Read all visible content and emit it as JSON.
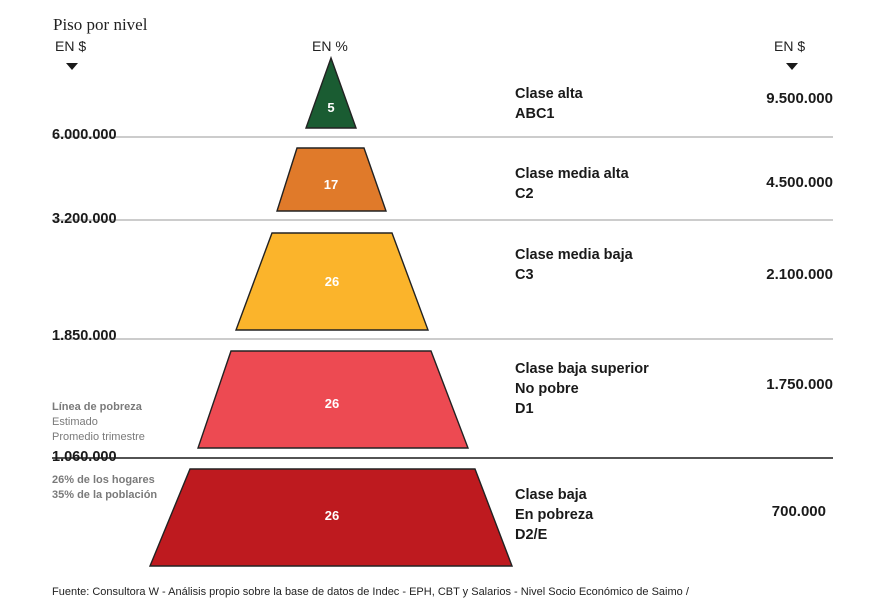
{
  "header": {
    "title": "Piso por nivel",
    "left_unit": "EN $",
    "center_unit": "EN %",
    "right_unit": "EN $"
  },
  "thresholds": [
    "6.000.000",
    "3.200.000",
    "1.850.000",
    "1.060.000"
  ],
  "poverty_note": {
    "line1": "Línea de pobreza",
    "line2": "Estimado",
    "line3": "Promedio trimestre"
  },
  "poor_note": {
    "line1": "26% de los hogares",
    "line2": "35% de la población"
  },
  "classes": [
    {
      "lines": [
        "Clase alta",
        "ABC1"
      ]
    },
    {
      "lines": [
        "Clase media alta",
        "C2"
      ]
    },
    {
      "lines": [
        "Clase media baja",
        "C3"
      ]
    },
    {
      "lines": [
        "Clase baja superior",
        "No pobre",
        "D1"
      ]
    },
    {
      "lines": [
        "Clase baja",
        "En pobreza",
        "D2/E"
      ]
    }
  ],
  "source": "Fuente: Consultora W - Análisis propio sobre la base de datos de Indec - EPH, CBT y Salarios - Nivel Socio Económico de Saimo /",
  "colors": {
    "alta": "#1a5c32",
    "media_alta": "#e07a2a",
    "media_baja": "#fbb42b",
    "baja_superior": "#ed4a52",
    "baja": "#be1a1f"
  },
  "chart_data": {
    "type": "pyramid",
    "categories": [
      "ABC1",
      "C2",
      "C3",
      "D1",
      "D2/E"
    ],
    "labels": [
      "Clase alta",
      "Clase media alta",
      "Clase media baja",
      "Clase baja superior",
      "Clase baja"
    ],
    "share_percent": [
      5,
      17,
      26,
      26,
      26
    ],
    "share_labels": [
      "5",
      "17",
      "26",
      "26",
      "26"
    ],
    "average_income_ars": [
      9500000,
      4500000,
      2100000,
      1750000,
      700000
    ],
    "average_income_labels": [
      "9.500.000",
      "4.500.000",
      "2.100.000",
      "1.750.000",
      "700.000"
    ],
    "floor_income_ars": [
      6000000,
      3200000,
      1850000,
      1060000
    ],
    "poverty_line_ars": 1060000,
    "unit_left": "EN $",
    "unit_center": "EN %",
    "unit_right": "EN $",
    "title": "Piso por nivel"
  }
}
